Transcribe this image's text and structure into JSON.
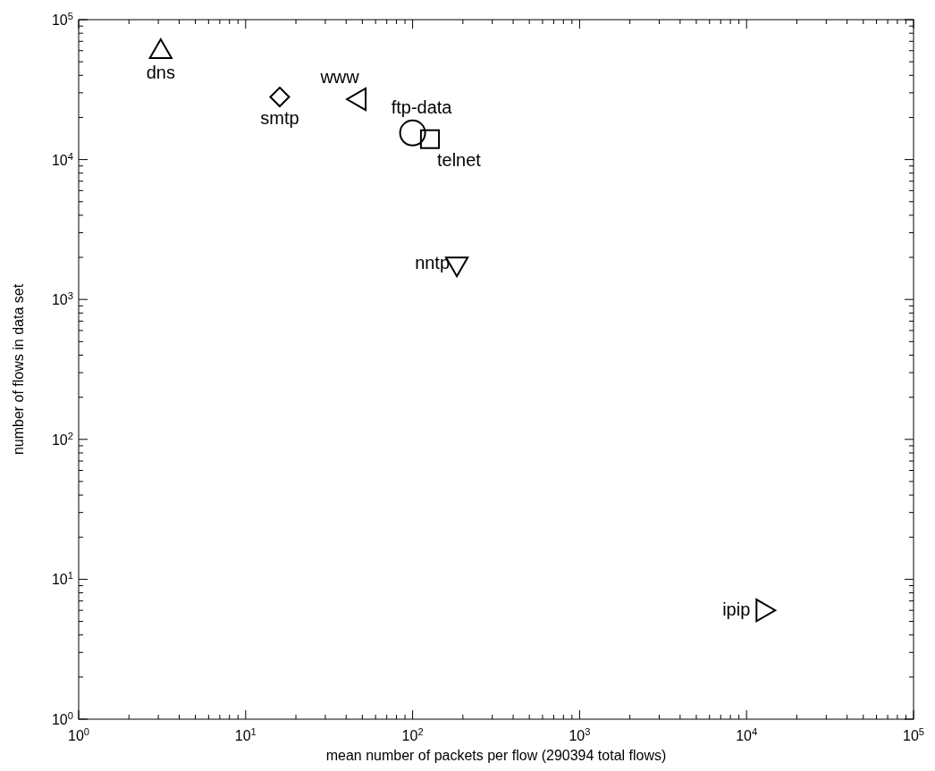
{
  "chart_data": {
    "type": "scatter",
    "xlabel": "mean number of packets per flow (290394 total flows)",
    "ylabel": "number of flows in data set",
    "log": "xy",
    "grid": false,
    "xlim": [
      1,
      100000
    ],
    "ylim": [
      1,
      100000
    ],
    "xticks": [
      {
        "value": 1,
        "label": "10$^{0}$"
      },
      {
        "value": 10,
        "label": "10$^{1}$"
      },
      {
        "value": 100,
        "label": "10$^{2}$"
      },
      {
        "value": 1000,
        "label": "10$^{3}$"
      },
      {
        "value": 10000,
        "label": "10$^{4}$"
      },
      {
        "value": 100000,
        "label": "10$^{5}$"
      }
    ],
    "yticks": [
      {
        "value": 1,
        "label": "10$^{0}$"
      },
      {
        "value": 10,
        "label": "10$^{1}$"
      },
      {
        "value": 100,
        "label": "10$^{2}$"
      },
      {
        "value": 1000,
        "label": "10$^{3}$"
      },
      {
        "value": 10000,
        "label": "10$^{4}$"
      },
      {
        "value": 100000,
        "label": "10$^{5}$"
      }
    ],
    "series": [
      {
        "name": "dns",
        "color": "#000000",
        "marker": "triangle",
        "x": [
          3.1
        ],
        "values": [
          59000
        ]
      },
      {
        "name": "smtp",
        "color": "#000000",
        "marker": "diamond",
        "x": [
          16
        ],
        "values": [
          28000
        ]
      },
      {
        "name": "www",
        "color": "#000000",
        "marker": "triangle-left",
        "x": [
          48
        ],
        "values": [
          27000
        ]
      },
      {
        "name": "ftp-data",
        "color": "#000000",
        "marker": "circle",
        "x": [
          100
        ],
        "values": [
          15500
        ]
      },
      {
        "name": "telnet",
        "color": "#000000",
        "marker": "square",
        "x": [
          127
        ],
        "values": [
          14000
        ]
      },
      {
        "name": "nntp",
        "color": "#000000",
        "marker": "triangle-down",
        "x": [
          184
        ],
        "values": [
          1800
        ]
      },
      {
        "name": "ipip",
        "color": "#000000",
        "marker": "triangle-right",
        "x": [
          12500
        ],
        "values": [
          6
        ]
      }
    ]
  }
}
